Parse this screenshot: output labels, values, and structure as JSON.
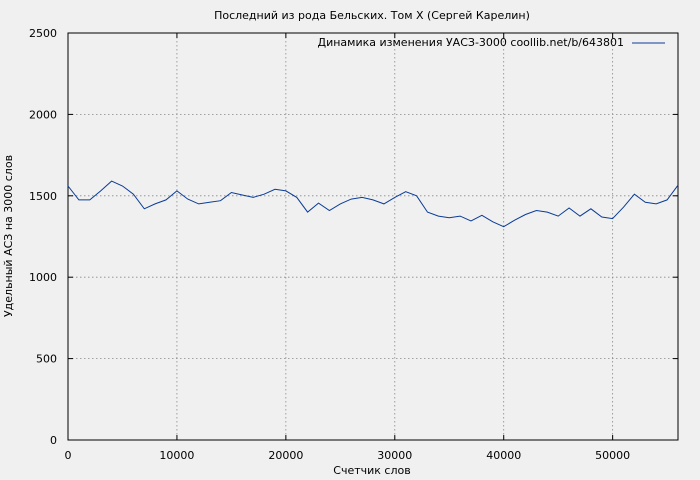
{
  "chart_data": {
    "type": "line",
    "title": "Последний из рода Бельских. Том X (Сергей Карелин)",
    "xlabel": "Счетчик слов",
    "ylabel": "Удельный АСЗ на 3000 слов",
    "xlim": [
      0,
      56000
    ],
    "ylim": [
      0,
      2500
    ],
    "xticks": [
      0,
      10000,
      20000,
      30000,
      40000,
      50000
    ],
    "yticks": [
      0,
      500,
      1000,
      1500,
      2000,
      2500
    ],
    "xtick_labels": [
      "0",
      "10000",
      "20000",
      "30000",
      "40000",
      "50000"
    ],
    "ytick_labels": [
      "0",
      "500",
      "1000",
      "1500",
      "2000",
      "2500"
    ],
    "grid": true,
    "legend_position": "top-right",
    "line_color": "#0a3c96",
    "series": [
      {
        "name": "Динамика изменения УАСЗ-3000 coollib.net/b/643801",
        "x": [
          0,
          1000,
          2000,
          3000,
          4000,
          5000,
          6000,
          7000,
          8000,
          9000,
          10000,
          11000,
          12000,
          13000,
          14000,
          15000,
          16000,
          17000,
          18000,
          19000,
          20000,
          21000,
          22000,
          23000,
          24000,
          25000,
          26000,
          27000,
          28000,
          29000,
          30000,
          31000,
          32000,
          33000,
          34000,
          35000,
          36000,
          37000,
          38000,
          39000,
          40000,
          41000,
          42000,
          43000,
          44000,
          45000,
          46000,
          47000,
          48000,
          49000,
          50000,
          51000,
          52000,
          53000,
          54000,
          55000,
          56000
        ],
        "values": [
          1560,
          1475,
          1475,
          1530,
          1590,
          1560,
          1510,
          1420,
          1450,
          1475,
          1530,
          1480,
          1450,
          1460,
          1470,
          1520,
          1505,
          1490,
          1510,
          1540,
          1530,
          1490,
          1400,
          1455,
          1410,
          1450,
          1480,
          1490,
          1475,
          1450,
          1490,
          1525,
          1500,
          1400,
          1375,
          1365,
          1375,
          1345,
          1380,
          1340,
          1310,
          1350,
          1385,
          1410,
          1400,
          1375,
          1425,
          1375,
          1420,
          1370,
          1360,
          1430,
          1510,
          1460,
          1450,
          1475,
          1565
        ]
      }
    ]
  }
}
